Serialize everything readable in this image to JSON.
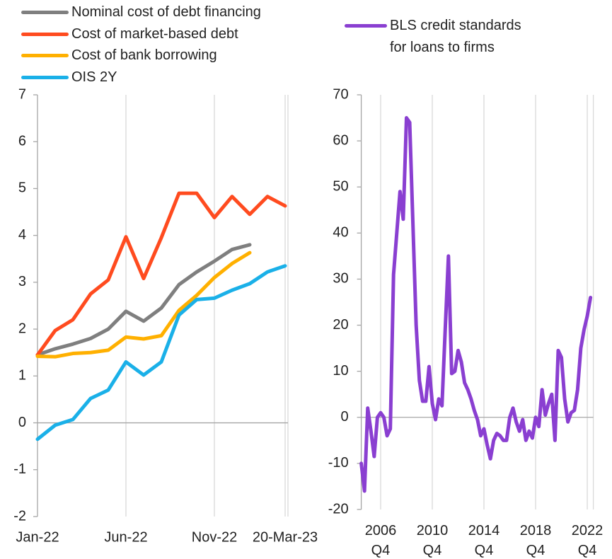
{
  "chart_data": [
    {
      "type": "line",
      "categories": [
        "Jan-22",
        null,
        null,
        null,
        null,
        "Jun-22",
        null,
        null,
        null,
        null,
        "Nov-22",
        null,
        null,
        null,
        "20-Mar-23"
      ],
      "series": [
        {
          "name": "Nominal cost of debt financing",
          "color": "#7f7f7f",
          "values": [
            1.45,
            1.58,
            1.68,
            1.8,
            2.0,
            2.38,
            2.17,
            2.45,
            2.95,
            3.22,
            3.45,
            3.7,
            3.8,
            null,
            null
          ]
        },
        {
          "name": "Cost of market-based debt",
          "color": "#ff4b1f",
          "values": [
            1.45,
            1.97,
            2.2,
            2.75,
            3.05,
            3.97,
            3.08,
            3.95,
            4.9,
            4.9,
            4.38,
            4.83,
            4.45,
            4.83,
            4.63
          ]
        },
        {
          "name": "Cost of bank borrowing",
          "color": "#ffb000",
          "values": [
            1.42,
            1.41,
            1.48,
            1.5,
            1.55,
            1.83,
            1.79,
            1.86,
            2.4,
            2.72,
            3.1,
            3.4,
            3.63,
            null,
            null
          ]
        },
        {
          "name": "OIS 2Y",
          "color": "#1ab0e8",
          "values": [
            -0.35,
            -0.05,
            0.07,
            0.52,
            0.7,
            1.3,
            1.02,
            1.3,
            2.3,
            2.63,
            2.66,
            2.83,
            2.97,
            3.22,
            3.35
          ]
        }
      ],
      "ylim": [
        -2,
        7
      ],
      "yticks": [
        -2,
        -1,
        0,
        1,
        2,
        3,
        4,
        5,
        6,
        7
      ],
      "grid": true,
      "legend": "top"
    },
    {
      "type": "line",
      "categories": [
        null,
        null,
        null,
        null,
        null,
        null,
        "2006 Q4",
        null,
        null,
        null,
        null,
        null,
        null,
        null,
        null,
        null,
        null,
        null,
        null,
        null,
        null,
        null,
        "2010 Q4",
        null,
        null,
        null,
        null,
        null,
        null,
        null,
        null,
        null,
        null,
        null,
        null,
        null,
        null,
        null,
        "2014 Q4",
        null,
        null,
        null,
        null,
        null,
        null,
        null,
        null,
        null,
        null,
        null,
        null,
        null,
        null,
        null,
        "2018 Q4",
        null,
        null,
        null,
        null,
        null,
        null,
        null,
        null,
        null,
        null,
        null,
        null,
        null,
        null,
        null,
        "2022 Q4",
        null
      ],
      "series": [
        {
          "name": "BLS credit standards for loans to firms",
          "color": "#8a3fd1",
          "values": [
            -10,
            -16,
            2,
            -3,
            -8.5,
            0,
            1,
            0,
            -4,
            -2.5,
            31,
            40,
            49,
            43,
            65,
            64,
            42,
            20,
            8,
            3.5,
            3.5,
            11,
            3,
            -0.5,
            4,
            2.5,
            19,
            35,
            9.5,
            10,
            14.5,
            12,
            7.5,
            6,
            4,
            1.5,
            -0.5,
            -4,
            -2.5,
            -6,
            -9,
            -5,
            -3.5,
            -4,
            -5,
            -5,
            0,
            2,
            -1,
            -3,
            -0.5,
            -5,
            -3,
            -4.5,
            0,
            -2,
            6,
            0.5,
            3,
            5,
            -5,
            14.5,
            13,
            4,
            -1,
            1,
            1.5,
            6,
            15,
            19,
            22,
            26
          ]
        }
      ],
      "ylim": [
        -20,
        70
      ],
      "yticks": [
        -20,
        -10,
        0,
        10,
        20,
        30,
        40,
        50,
        60,
        70
      ],
      "grid": true,
      "legend": "top"
    }
  ]
}
